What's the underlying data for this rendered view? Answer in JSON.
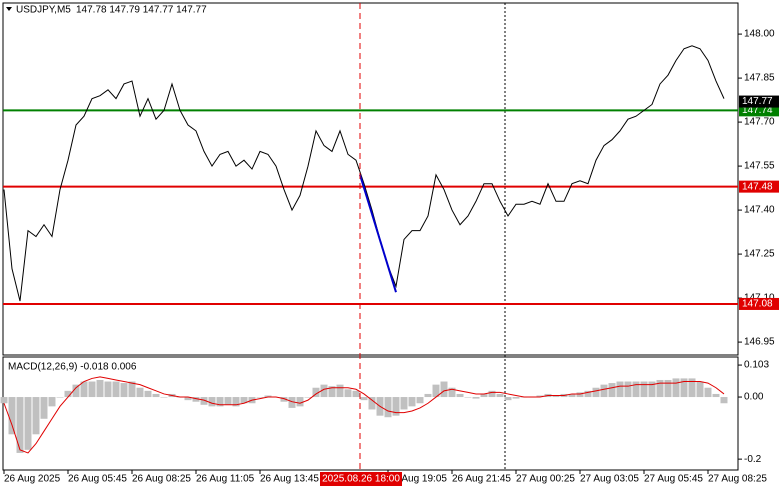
{
  "chart_data": [
    {
      "type": "line",
      "title": "USDJPY,M5",
      "ohlc": "147.78 147.79 147.77 147.77",
      "categories": [
        "26 Aug 2025",
        null,
        null,
        null,
        null,
        null,
        null,
        null,
        "26 Aug 05:45",
        null,
        null,
        null,
        null,
        null,
        null,
        null,
        "26 Aug 08:25",
        null,
        null,
        null,
        null,
        null,
        null,
        null,
        "26 Aug 11:05",
        null,
        null,
        null,
        null,
        null,
        null,
        null,
        "26 Aug 13:45",
        null,
        null,
        null,
        null,
        null,
        null,
        null,
        null,
        null,
        null,
        null,
        null,
        null,
        null,
        null,
        "26 Aug 19:05",
        null,
        null,
        null,
        null,
        null,
        null,
        null,
        "26 Aug 21:45",
        null,
        null,
        null,
        null,
        null,
        null,
        null,
        "27 Aug 00:25",
        null,
        null,
        null,
        null,
        null,
        null,
        null,
        "27 Aug 03:05",
        null,
        null,
        null,
        null,
        null,
        null,
        null,
        "27 Aug 05:45",
        null,
        null,
        null,
        null,
        null,
        null,
        null,
        "27 Aug 08:25",
        null,
        null
      ],
      "series": [
        {
          "color": "#000000",
          "values": [
            147.47,
            147.2,
            147.09,
            147.33,
            147.31,
            147.35,
            147.31,
            147.47,
            147.57,
            147.69,
            147.72,
            147.78,
            147.79,
            147.81,
            147.78,
            147.83,
            147.84,
            147.72,
            147.78,
            147.71,
            147.74,
            147.83,
            147.74,
            147.69,
            147.67,
            147.6,
            147.55,
            147.59,
            147.6,
            147.55,
            147.57,
            147.54,
            147.6,
            147.59,
            147.55,
            147.47,
            147.4,
            147.45,
            147.55,
            147.67,
            147.62,
            147.6,
            147.67,
            147.59,
            147.57,
            147.49,
            147.4,
            147.3,
            147.21,
            147.14,
            147.3,
            147.33,
            147.33,
            147.38,
            147.52,
            147.47,
            147.4,
            147.35,
            147.38,
            147.43,
            147.49,
            147.49,
            147.43,
            147.38,
            147.42,
            147.42,
            147.43,
            147.42,
            147.49,
            147.43,
            147.43,
            147.49,
            147.5,
            147.49,
            147.57,
            147.62,
            147.64,
            147.67,
            147.71,
            147.72,
            147.74,
            147.76,
            147.83,
            147.86,
            147.91,
            147.95,
            147.96,
            147.95,
            147.91,
            147.84,
            147.78
          ]
        }
      ],
      "trend": {
        "color": "#0000cc",
        "index": [
          44.5,
          49
        ],
        "values": [
          147.52,
          147.12
        ]
      },
      "levels": [
        {
          "value": 147.74,
          "color": "#008000"
        },
        {
          "value": 147.48,
          "color": "#e00000"
        },
        {
          "value": 147.08,
          "color": "#e00000"
        }
      ],
      "current_price": 147.77,
      "crosshair": {
        "index": 44.5,
        "label": "2025.08.26 18:00",
        "color": "#e00000"
      },
      "ylim": [
        146.906,
        148.106
      ],
      "yticks": [
        {
          "value": 148.0,
          "label": "148.00"
        },
        147.85,
        {
          "value": 147.7,
          "label": "147.70"
        },
        147.55,
        {
          "value": 147.4,
          "label": "147.40"
        },
        147.25,
        {
          "value": 147.1,
          "label": "147.10"
        },
        146.95
      ]
    },
    {
      "type": "macd",
      "title": "MACD(12,26,9) -0.018 0.006",
      "histogram": {
        "color": "#c0c0c0",
        "values": [
          -0.02,
          -0.12,
          -0.18,
          -0.17,
          -0.12,
          -0.07,
          -0.03,
          0.0,
          0.02,
          0.04,
          0.05,
          0.05,
          0.055,
          0.05,
          0.05,
          0.045,
          0.05,
          0.03,
          0.02,
          0.01,
          0.0,
          0.01,
          0.0,
          -0.01,
          -0.015,
          -0.025,
          -0.03,
          -0.03,
          -0.025,
          -0.03,
          -0.02,
          -0.02,
          0.0,
          0.005,
          0.0,
          -0.015,
          -0.035,
          -0.03,
          0.0,
          0.03,
          0.04,
          0.035,
          0.04,
          0.025,
          0.02,
          -0.01,
          -0.04,
          -0.06,
          -0.065,
          -0.06,
          -0.04,
          -0.03,
          -0.02,
          0.01,
          0.04,
          0.05,
          0.03,
          0.01,
          0.0,
          -0.005,
          0.01,
          0.02,
          0.01,
          -0.01,
          -0.005,
          0.0,
          0.0,
          0.005,
          0.01,
          0.005,
          0.01,
          0.01,
          0.015,
          0.02,
          0.03,
          0.04,
          0.045,
          0.05,
          0.05,
          0.05,
          0.05,
          0.05,
          0.055,
          0.055,
          0.06,
          0.06,
          0.06,
          0.05,
          0.03,
          0.01,
          -0.02
        ]
      },
      "signal": {
        "color": "#e00000",
        "values": [
          -0.02,
          -0.09,
          -0.17,
          -0.18,
          -0.15,
          -0.11,
          -0.07,
          -0.03,
          0.0,
          0.03,
          0.05,
          0.06,
          0.065,
          0.06,
          0.055,
          0.05,
          0.045,
          0.04,
          0.03,
          0.02,
          0.01,
          0.005,
          0.0,
          0.0,
          -0.005,
          -0.01,
          -0.02,
          -0.025,
          -0.025,
          -0.025,
          -0.02,
          -0.01,
          -0.005,
          0.0,
          0.0,
          -0.005,
          -0.015,
          -0.02,
          -0.01,
          0.01,
          0.025,
          0.03,
          0.03,
          0.03,
          0.025,
          0.01,
          -0.01,
          -0.03,
          -0.045,
          -0.05,
          -0.05,
          -0.045,
          -0.035,
          -0.02,
          0.0,
          0.02,
          0.025,
          0.02,
          0.015,
          0.01,
          0.01,
          0.015,
          0.015,
          0.01,
          0.005,
          0.0,
          0.0,
          0.0,
          0.005,
          0.005,
          0.005,
          0.01,
          0.01,
          0.015,
          0.02,
          0.025,
          0.03,
          0.035,
          0.035,
          0.04,
          0.04,
          0.04,
          0.045,
          0.045,
          0.045,
          0.05,
          0.05,
          0.05,
          0.045,
          0.03,
          0.01
        ]
      },
      "ylim": [
        -0.235,
        0.129
      ],
      "yticks": [
        0.103,
        {
          "value": 0.0,
          "label": "0.00"
        },
        -0.2
      ]
    }
  ]
}
